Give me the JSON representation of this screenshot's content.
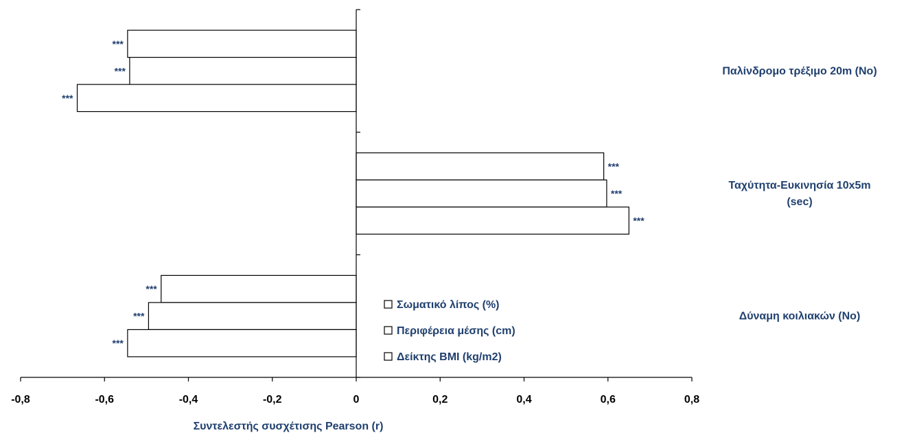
{
  "chart_data": {
    "type": "bar",
    "orientation": "horizontal",
    "categories": [
      "Παλίνδρομο τρέξιμο 20m (No)",
      "Ταχύτητα-Ευκινησία 10x5m (sec)",
      "Δύναμη κοιλιακών (No)"
    ],
    "category_lines": [
      [
        "Παλίνδρομο τρέξιμο 20m (No)"
      ],
      [
        "Ταχύτητα-Ευκινησία 10x5m",
        "(sec)"
      ],
      [
        "Δύναμη κοιλιακών (No)"
      ]
    ],
    "series": [
      {
        "name": "Σωματικό λίπος (%)",
        "values": [
          -0.545,
          0.59,
          -0.465
        ],
        "labels": [
          "***",
          "***",
          "***"
        ]
      },
      {
        "name": "Περιφέρεια μέσης (cm)",
        "values": [
          -0.54,
          0.597,
          -0.495
        ],
        "labels": [
          "***",
          "***",
          "***"
        ]
      },
      {
        "name": "Δείκτης BMI (kg/m2)",
        "values": [
          -0.665,
          0.65,
          -0.545
        ],
        "labels": [
          "***",
          "***",
          "***"
        ]
      }
    ],
    "xlim": [
      -0.8,
      0.8
    ],
    "xticks": [
      "-0,8",
      "-0,6",
      "-0,4",
      "-0,2",
      "0",
      "0,2",
      "0,4",
      "0,6",
      "0,8"
    ],
    "xlabel": "Συντελεστής συσχέτισης Pearson (r)",
    "legend_position": "inside-bottom-center",
    "grid": false,
    "colors": {
      "bar_fill": "#ffffff",
      "bar_stroke": "#000000",
      "text_accent": "#1f3f6e"
    }
  }
}
